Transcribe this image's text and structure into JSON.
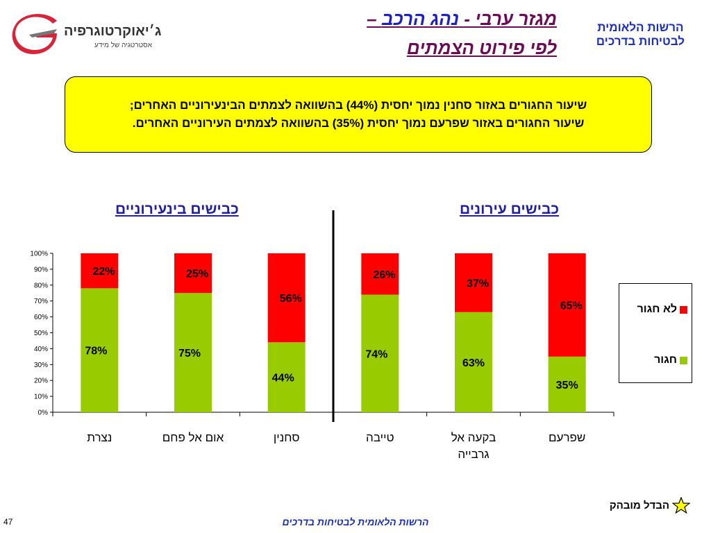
{
  "header": {
    "title_line1_part1": "מגזר ערבי - ",
    "title_line1_part2": "נהג הרכב",
    "title_line1_part3": " –",
    "title_line2": "לפי פירוט הצמתים",
    "org_line1": "הרשות הלאומית",
    "org_line2": "לבטיחות בדרכים",
    "logo_name": "ג׳יאוקרטוגרפיה",
    "logo_tagline": "אסטרטגיה של מידע",
    "logo_icon": "geocartography-g-logo"
  },
  "info_box": {
    "line1": "שיעור החגורים באזור סחנין נמוך יחסית (44%) בהשוואה לצמתים הבינעירוניים האחרים;",
    "line2": "שיעור החגורים באזור שפרעם נמוך יחסית (35%) בהשוואה לצמתים העירוניים האחרים."
  },
  "groups": {
    "urban": "כבישים עירונים",
    "interurban": "כבישים בינעירוניים"
  },
  "legend": {
    "not_belted": "לא חגור",
    "belted": "חגור"
  },
  "note": {
    "text": "הבדל מובהק",
    "icon": "star-icon"
  },
  "footer": {
    "text": "הרשות הלאומית לבטיחות בדרכים",
    "page_number": "47"
  },
  "colors": {
    "belted": "#99cc00",
    "not_belted": "#ff0000",
    "title_blue": "#2020c0",
    "title_purple": "#6b0a55",
    "info_box": "#ffff00"
  },
  "chart_data": {
    "type": "bar",
    "stacked": true,
    "categories": [
      "נצרת",
      "אום אל פחם",
      "סחנין",
      "טייבה",
      "בקעה אל גרבייה",
      "שפרעם"
    ],
    "category_lines": [
      [
        "נצרת"
      ],
      [
        "אום אל פחם"
      ],
      [
        "סחנין"
      ],
      [
        "טייבה"
      ],
      [
        "בקעה אל",
        "גרבייה"
      ],
      [
        "שפרעם"
      ]
    ],
    "series": [
      {
        "name": "חגור",
        "values": [
          78,
          75,
          44,
          74,
          63,
          35
        ]
      },
      {
        "name": "לא חגור",
        "values": [
          22,
          25,
          56,
          26,
          37,
          65
        ]
      }
    ],
    "y_ticks": [
      "0%",
      "10%",
      "20%",
      "30%",
      "40%",
      "50%",
      "60%",
      "70%",
      "80%",
      "90%",
      "100%"
    ],
    "ylim": [
      0,
      100
    ],
    "grid": false,
    "legend_position": "right"
  }
}
